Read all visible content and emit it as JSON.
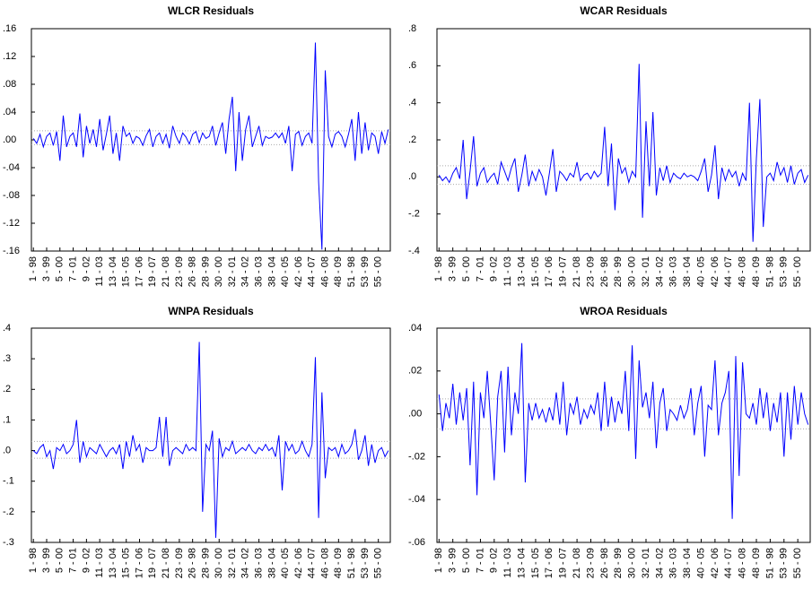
{
  "chart_data": [
    {
      "type": "line",
      "title": "WLCR Residuals",
      "categories": [
        "1 - 98",
        null,
        null,
        null,
        "3 - 99",
        null,
        null,
        null,
        "5 - 00",
        null,
        null,
        null,
        "7 - 01",
        null,
        null,
        null,
        "9 - 02",
        null,
        null,
        null,
        "11 - 03",
        null,
        null,
        null,
        "13 - 04",
        null,
        null,
        null,
        "15 - 05",
        null,
        null,
        null,
        "17 - 06",
        null,
        null,
        null,
        "19 - 07",
        null,
        null,
        null,
        "21 - 08",
        null,
        null,
        null,
        "23 - 09",
        null,
        null,
        null,
        "26 - 98",
        null,
        null,
        null,
        "28 - 99",
        null,
        null,
        null,
        "30 - 00",
        null,
        null,
        null,
        "32 - 01",
        null,
        null,
        null,
        "34 - 02",
        null,
        null,
        null,
        "36 - 03",
        null,
        null,
        null,
        "38 - 04",
        null,
        null,
        null,
        "40 - 05",
        null,
        null,
        null,
        "42 - 06",
        null,
        null,
        null,
        "44 - 07",
        null,
        null,
        null,
        "46 - 08",
        null,
        null,
        null,
        "48 - 09",
        null,
        null,
        null,
        "51 - 98",
        null,
        null,
        null,
        "53 - 99",
        null,
        null,
        null,
        "55 - 00",
        null,
        null,
        null
      ],
      "values": [
        0.002,
        -0.005,
        0.008,
        -0.01,
        0.005,
        0.01,
        -0.008,
        0.012,
        -0.03,
        0.035,
        -0.01,
        0.005,
        0.01,
        -0.01,
        0.038,
        -0.025,
        0.02,
        -0.005,
        0.015,
        -0.01,
        0.03,
        -0.015,
        0.008,
        0.035,
        -0.02,
        0.01,
        -0.03,
        0.02,
        0.005,
        0.01,
        -0.005,
        0.005,
        0.002,
        -0.008,
        0.006,
        0.015,
        -0.01,
        0.005,
        0.01,
        -0.005,
        0.008,
        -0.012,
        0.02,
        0.005,
        -0.005,
        0.01,
        0.004,
        -0.006,
        0.008,
        0.012,
        -0.004,
        0.01,
        0.002,
        0.005,
        0.02,
        -0.008,
        0.01,
        0.025,
        -0.02,
        0.03,
        0.062,
        -0.045,
        0.04,
        -0.03,
        0.015,
        0.035,
        -0.01,
        0.005,
        0.02,
        -0.008,
        0.005,
        0.002,
        0.004,
        0.01,
        0.003,
        0.01,
        -0.005,
        0.02,
        -0.045,
        0.008,
        0.012,
        -0.008,
        0.005,
        0.01,
        -0.005,
        0.14,
        -0.06,
        -0.158,
        0.1,
        0.005,
        -0.01,
        0.008,
        0.012,
        0.005,
        -0.01,
        0.008,
        0.03,
        -0.03,
        0.04,
        -0.02,
        0.025,
        -0.015,
        0.01,
        0.005,
        -0.02,
        0.012,
        -0.005,
        0.015
      ],
      "color": "#0000ff",
      "reference_lines": [
        0.013,
        -0.007
      ],
      "ylim": [
        -0.16,
        0.16
      ],
      "yticks": [
        {
          "value": -0.16,
          "label": "-.16"
        },
        {
          "value": -0.12,
          "label": "-.12"
        },
        {
          "value": -0.08,
          "label": "-.08"
        },
        {
          "value": -0.04,
          "label": "-.04"
        },
        {
          "value": 0,
          "label": ".00"
        },
        {
          "value": 0.04,
          "label": ".04"
        },
        {
          "value": 0.08,
          "label": ".08"
        },
        {
          "value": 0.12,
          "label": ".12"
        },
        {
          "value": 0.16,
          "label": ".16"
        }
      ]
    },
    {
      "type": "line",
      "title": "WCAR Residuals",
      "categories": [
        "1 - 98",
        null,
        null,
        null,
        "3 - 99",
        null,
        null,
        null,
        "5 - 00",
        null,
        null,
        null,
        "7 - 01",
        null,
        null,
        null,
        "9 - 02",
        null,
        null,
        null,
        "11 - 03",
        null,
        null,
        null,
        "13 - 04",
        null,
        null,
        null,
        "15 - 05",
        null,
        null,
        null,
        "17 - 06",
        null,
        null,
        null,
        "19 - 07",
        null,
        null,
        null,
        "21 - 08",
        null,
        null,
        null,
        "23 - 09",
        null,
        null,
        null,
        "26 - 98",
        null,
        null,
        null,
        "28 - 99",
        null,
        null,
        null,
        "30 - 00",
        null,
        null,
        null,
        "32 - 01",
        null,
        null,
        null,
        "34 - 02",
        null,
        null,
        null,
        "36 - 03",
        null,
        null,
        null,
        "38 - 04",
        null,
        null,
        null,
        "40 - 05",
        null,
        null,
        null,
        "42 - 06",
        null,
        null,
        null,
        "44 - 07",
        null,
        null,
        null,
        "46 - 08",
        null,
        null,
        null,
        "48 - 09",
        null,
        null,
        null,
        "51 - 98",
        null,
        null,
        null,
        "53 - 99",
        null,
        null,
        null,
        "55 - 00",
        null,
        null,
        null
      ],
      "values": [
        0.01,
        -0.02,
        0.0,
        -0.03,
        0.02,
        0.05,
        -0.01,
        0.2,
        -0.12,
        0.03,
        0.22,
        -0.05,
        0.02,
        0.05,
        -0.03,
        0.0,
        0.02,
        -0.04,
        0.08,
        0.03,
        -0.02,
        0.05,
        0.1,
        -0.08,
        0.01,
        0.12,
        -0.05,
        0.03,
        -0.02,
        0.04,
        0.0,
        -0.1,
        0.02,
        0.15,
        -0.08,
        0.03,
        0.01,
        -0.02,
        0.02,
        0.0,
        0.08,
        -0.02,
        0.01,
        0.02,
        -0.01,
        0.03,
        0.0,
        0.02,
        0.27,
        -0.05,
        0.18,
        -0.18,
        0.1,
        0.02,
        0.05,
        -0.03,
        0.03,
        0.0,
        0.61,
        -0.22,
        0.3,
        -0.05,
        0.35,
        -0.1,
        0.05,
        -0.02,
        0.06,
        -0.03,
        0.02,
        0.0,
        -0.01,
        0.02,
        0.0,
        0.01,
        0.0,
        -0.02,
        0.03,
        0.1,
        -0.08,
        0.01,
        0.17,
        -0.12,
        0.05,
        -0.02,
        0.04,
        0.0,
        0.03,
        -0.05,
        0.02,
        -0.02,
        0.4,
        -0.35,
        0.1,
        0.42,
        -0.27,
        0.0,
        0.02,
        -0.02,
        0.08,
        0.01,
        0.05,
        -0.03,
        0.06,
        -0.04,
        0.02,
        0.04,
        -0.03,
        0.01
      ],
      "color": "#0000ff",
      "reference_lines": [
        0.06,
        -0.04
      ],
      "ylim": [
        -0.4,
        0.8
      ],
      "yticks": [
        {
          "value": -0.4,
          "label": "-.4"
        },
        {
          "value": -0.2,
          "label": "-.2"
        },
        {
          "value": 0,
          "label": ".0"
        },
        {
          "value": 0.2,
          "label": ".2"
        },
        {
          "value": 0.4,
          "label": ".4"
        },
        {
          "value": 0.6,
          "label": ".6"
        },
        {
          "value": 0.8,
          "label": ".8"
        }
      ]
    },
    {
      "type": "line",
      "title": "WNPA Residuals",
      "categories": [
        "1 - 98",
        null,
        null,
        null,
        "3 - 99",
        null,
        null,
        null,
        "5 - 00",
        null,
        null,
        null,
        "7 - 01",
        null,
        null,
        null,
        "9 - 02",
        null,
        null,
        null,
        "11 - 03",
        null,
        null,
        null,
        "13 - 04",
        null,
        null,
        null,
        "15 - 05",
        null,
        null,
        null,
        "17 - 06",
        null,
        null,
        null,
        "19 - 07",
        null,
        null,
        null,
        "21 - 08",
        null,
        null,
        null,
        "23 - 09",
        null,
        null,
        null,
        "26 - 98",
        null,
        null,
        null,
        "28 - 99",
        null,
        null,
        null,
        "30 - 00",
        null,
        null,
        null,
        "32 - 01",
        null,
        null,
        null,
        "34 - 02",
        null,
        null,
        null,
        "36 - 03",
        null,
        null,
        null,
        "38 - 04",
        null,
        null,
        null,
        "40 - 05",
        null,
        null,
        null,
        "42 - 06",
        null,
        null,
        null,
        "44 - 07",
        null,
        null,
        null,
        "46 - 08",
        null,
        null,
        null,
        "48 - 09",
        null,
        null,
        null,
        "51 - 98",
        null,
        null,
        null,
        "53 - 99",
        null,
        null,
        null,
        "55 - 00",
        null,
        null,
        null
      ],
      "values": [
        0.0,
        -0.01,
        0.01,
        0.02,
        -0.02,
        0.0,
        -0.06,
        0.01,
        0.0,
        0.02,
        -0.01,
        0.0,
        0.02,
        0.1,
        -0.04,
        0.03,
        -0.02,
        0.01,
        0.0,
        -0.01,
        0.02,
        0.0,
        -0.02,
        0.0,
        0.01,
        -0.01,
        0.02,
        -0.06,
        0.03,
        -0.02,
        0.05,
        0.0,
        0.02,
        -0.04,
        0.01,
        0.0,
        0.0,
        0.01,
        0.11,
        -0.02,
        0.11,
        -0.05,
        0.0,
        0.01,
        0.0,
        -0.01,
        0.02,
        0.0,
        0.01,
        0.0,
        0.355,
        -0.2,
        0.02,
        0.0,
        0.065,
        -0.285,
        0.04,
        -0.02,
        0.01,
        0.0,
        0.03,
        -0.01,
        0.0,
        0.01,
        0.0,
        0.02,
        0.0,
        -0.01,
        0.01,
        0.0,
        0.02,
        0.0,
        0.01,
        -0.02,
        0.05,
        -0.13,
        0.03,
        0.0,
        0.02,
        -0.01,
        0.0,
        0.03,
        0.0,
        -0.02,
        0.02,
        0.305,
        -0.22,
        0.19,
        -0.09,
        0.01,
        0.0,
        0.01,
        -0.02,
        0.02,
        -0.01,
        0.0,
        0.02,
        0.07,
        -0.03,
        0.0,
        0.05,
        -0.05,
        0.02,
        -0.04,
        0.0,
        0.01,
        -0.02,
        0.0
      ],
      "color": "#0000ff",
      "reference_lines": [
        0.03,
        -0.025
      ],
      "ylim": [
        -0.3,
        0.4
      ],
      "yticks": [
        {
          "value": -0.3,
          "label": "-.3"
        },
        {
          "value": -0.2,
          "label": "-.2"
        },
        {
          "value": -0.1,
          "label": "-.1"
        },
        {
          "value": 0,
          "label": ".0"
        },
        {
          "value": 0.1,
          "label": ".1"
        },
        {
          "value": 0.2,
          "label": ".2"
        },
        {
          "value": 0.3,
          "label": ".3"
        },
        {
          "value": 0.4,
          "label": ".4"
        }
      ]
    },
    {
      "type": "line",
      "title": "WROA Residuals",
      "categories": [
        "1 - 98",
        null,
        null,
        null,
        "3 - 99",
        null,
        null,
        null,
        "5 - 00",
        null,
        null,
        null,
        "7 - 01",
        null,
        null,
        null,
        "9 - 02",
        null,
        null,
        null,
        "11 - 03",
        null,
        null,
        null,
        "13 - 04",
        null,
        null,
        null,
        "15 - 05",
        null,
        null,
        null,
        "17 - 06",
        null,
        null,
        null,
        "19 - 07",
        null,
        null,
        null,
        "21 - 08",
        null,
        null,
        null,
        "23 - 09",
        null,
        null,
        null,
        "26 - 98",
        null,
        null,
        null,
        "28 - 99",
        null,
        null,
        null,
        "30 - 00",
        null,
        null,
        null,
        "32 - 01",
        null,
        null,
        null,
        "34 - 02",
        null,
        null,
        null,
        "36 - 03",
        null,
        null,
        null,
        "38 - 04",
        null,
        null,
        null,
        "40 - 05",
        null,
        null,
        null,
        "42 - 06",
        null,
        null,
        null,
        "44 - 07",
        null,
        null,
        null,
        "46 - 08",
        null,
        null,
        null,
        "48 - 09",
        null,
        null,
        null,
        "51 - 98",
        null,
        null,
        null,
        "53 - 99",
        null,
        null,
        null,
        "55 - 00",
        null,
        null,
        null
      ],
      "values": [
        0.009,
        -0.008,
        0.005,
        -0.002,
        0.014,
        -0.005,
        0.01,
        -0.003,
        0.012,
        -0.024,
        0.015,
        -0.038,
        0.01,
        -0.002,
        0.02,
        -0.005,
        -0.031,
        0.008,
        0.02,
        -0.018,
        0.022,
        -0.01,
        0.01,
        0.0,
        0.033,
        -0.032,
        0.005,
        -0.003,
        0.005,
        -0.002,
        0.002,
        -0.004,
        0.003,
        -0.003,
        0.01,
        -0.005,
        0.015,
        -0.01,
        0.005,
        0.0,
        0.008,
        -0.005,
        0.002,
        -0.002,
        0.004,
        0.0,
        0.01,
        -0.008,
        0.015,
        -0.006,
        0.008,
        -0.004,
        0.006,
        0.0,
        0.02,
        -0.008,
        0.032,
        -0.021,
        0.025,
        0.003,
        0.01,
        -0.002,
        0.015,
        -0.016,
        0.005,
        0.012,
        -0.008,
        0.002,
        0.0,
        -0.003,
        0.004,
        -0.002,
        0.002,
        0.012,
        -0.01,
        0.005,
        0.013,
        -0.02,
        0.004,
        0.002,
        0.025,
        -0.01,
        0.005,
        0.01,
        0.02,
        -0.049,
        0.027,
        -0.029,
        0.024,
        0.0,
        -0.002,
        0.005,
        -0.005,
        0.012,
        -0.002,
        0.01,
        -0.008,
        0.005,
        -0.004,
        0.01,
        -0.02,
        0.01,
        -0.012,
        0.013,
        -0.005,
        0.01,
        0.0,
        -0.005
      ],
      "color": "#0000ff",
      "reference_lines": [
        0.007,
        -0.007
      ],
      "ylim": [
        -0.06,
        0.04
      ],
      "yticks": [
        {
          "value": -0.06,
          "label": "-.06"
        },
        {
          "value": -0.04,
          "label": "-.04"
        },
        {
          "value": -0.02,
          "label": "-.02"
        },
        {
          "value": 0,
          "label": ".00"
        },
        {
          "value": 0.02,
          "label": ".02"
        },
        {
          "value": 0.04,
          "label": ".04"
        }
      ]
    }
  ]
}
